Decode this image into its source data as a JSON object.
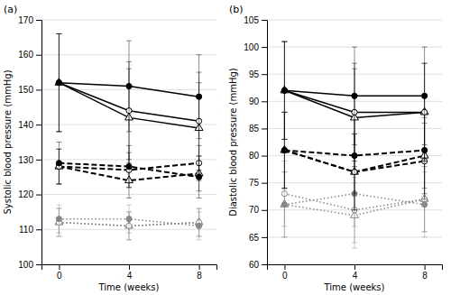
{
  "chart_data": [
    {
      "type": "line",
      "title": "(a)",
      "xlabel": "Time (weeks)",
      "ylabel": "Systolic blood pressure (mmHg)",
      "x": [
        0,
        4,
        8
      ],
      "xlim": [
        -1.0,
        9.0
      ],
      "xticks": [
        0,
        4,
        8
      ],
      "ylim": [
        100,
        170
      ],
      "yticks": [
        100,
        110,
        120,
        130,
        140,
        150,
        160,
        170
      ],
      "grid": true,
      "series": [
        {
          "values": [
            152,
            151,
            148
          ],
          "yerr": [
            14,
            13,
            12
          ],
          "color": "#000000",
          "marker": "circle",
          "line_style": "solid"
        },
        {
          "values": [
            152,
            144,
            141
          ],
          "yerr": [
            14,
            14,
            14
          ],
          "color": "#000000",
          "marker": "circle-open",
          "line_style": "solid"
        },
        {
          "values": [
            152,
            142,
            139
          ],
          "yerr": [
            14,
            14,
            13
          ],
          "color": "#000000",
          "marker": "triangle-open",
          "line_style": "solid"
        },
        {
          "values": [
            129,
            128,
            125
          ],
          "yerr": [
            6,
            6,
            6
          ],
          "color": "#000000",
          "marker": "circle",
          "line_style": "dashed"
        },
        {
          "values": [
            128,
            127,
            129
          ],
          "yerr": [
            5,
            5,
            5
          ],
          "color": "#000000",
          "marker": "circle-open",
          "line_style": "dashed"
        },
        {
          "values": [
            128,
            124,
            126
          ],
          "yerr": [
            5,
            5,
            5
          ],
          "color": "#000000",
          "marker": "triangle-open",
          "line_style": "dashed"
        },
        {
          "values": [
            113,
            113,
            111
          ],
          "yerr": [
            4,
            4,
            4
          ],
          "color": "#888888",
          "marker": "circle",
          "line_style": "dotted"
        },
        {
          "values": [
            112,
            111,
            112
          ],
          "yerr": [
            4,
            4,
            4
          ],
          "color": "#888888",
          "marker": "circle-open",
          "line_style": "dotted"
        },
        {
          "values": [
            112,
            111,
            112
          ],
          "yerr": [
            4,
            4,
            4
          ],
          "color": "#888888",
          "marker": "triangle-open",
          "line_style": "dotted"
        }
      ]
    },
    {
      "type": "line",
      "title": "(b)",
      "xlabel": "Time (weeks)",
      "ylabel": "Diastolic blood pressure (mmHg)",
      "x": [
        0,
        4,
        8
      ],
      "xlim": [
        -1.0,
        9.0
      ],
      "xticks": [
        0,
        4,
        8
      ],
      "ylim": [
        60,
        105
      ],
      "yticks": [
        60,
        65,
        70,
        75,
        80,
        85,
        90,
        95,
        100,
        105
      ],
      "grid": true,
      "series": [
        {
          "values": [
            92,
            91,
            91
          ],
          "yerr": [
            9,
            9,
            9
          ],
          "color": "#000000",
          "marker": "circle",
          "line_style": "solid"
        },
        {
          "values": [
            92,
            88,
            88
          ],
          "yerr": [
            9,
            9,
            9
          ],
          "color": "#000000",
          "marker": "circle-open",
          "line_style": "solid"
        },
        {
          "values": [
            92,
            87,
            88
          ],
          "yerr": [
            9,
            9,
            9
          ],
          "color": "#000000",
          "marker": "triangle-open",
          "line_style": "solid"
        },
        {
          "values": [
            81,
            80,
            81
          ],
          "yerr": [
            7,
            7,
            7
          ],
          "color": "#000000",
          "marker": "circle",
          "line_style": "dashed"
        },
        {
          "values": [
            81,
            77,
            79
          ],
          "yerr": [
            7,
            7,
            7
          ],
          "color": "#000000",
          "marker": "circle-open",
          "line_style": "dashed"
        },
        {
          "values": [
            81,
            77,
            80
          ],
          "yerr": [
            7,
            7,
            7
          ],
          "color": "#000000",
          "marker": "triangle-open",
          "line_style": "dashed"
        },
        {
          "values": [
            71,
            73,
            71
          ],
          "yerr": [
            6,
            6,
            6
          ],
          "color": "#888888",
          "marker": "circle",
          "line_style": "dotted"
        },
        {
          "values": [
            73,
            70,
            72
          ],
          "yerr": [
            6,
            6,
            6
          ],
          "color": "#888888",
          "marker": "circle-open",
          "line_style": "dotted"
        },
        {
          "values": [
            71,
            69,
            72
          ],
          "yerr": [
            6,
            6,
            6
          ],
          "color": "#888888",
          "marker": "triangle-open",
          "line_style": "dotted"
        }
      ]
    }
  ]
}
